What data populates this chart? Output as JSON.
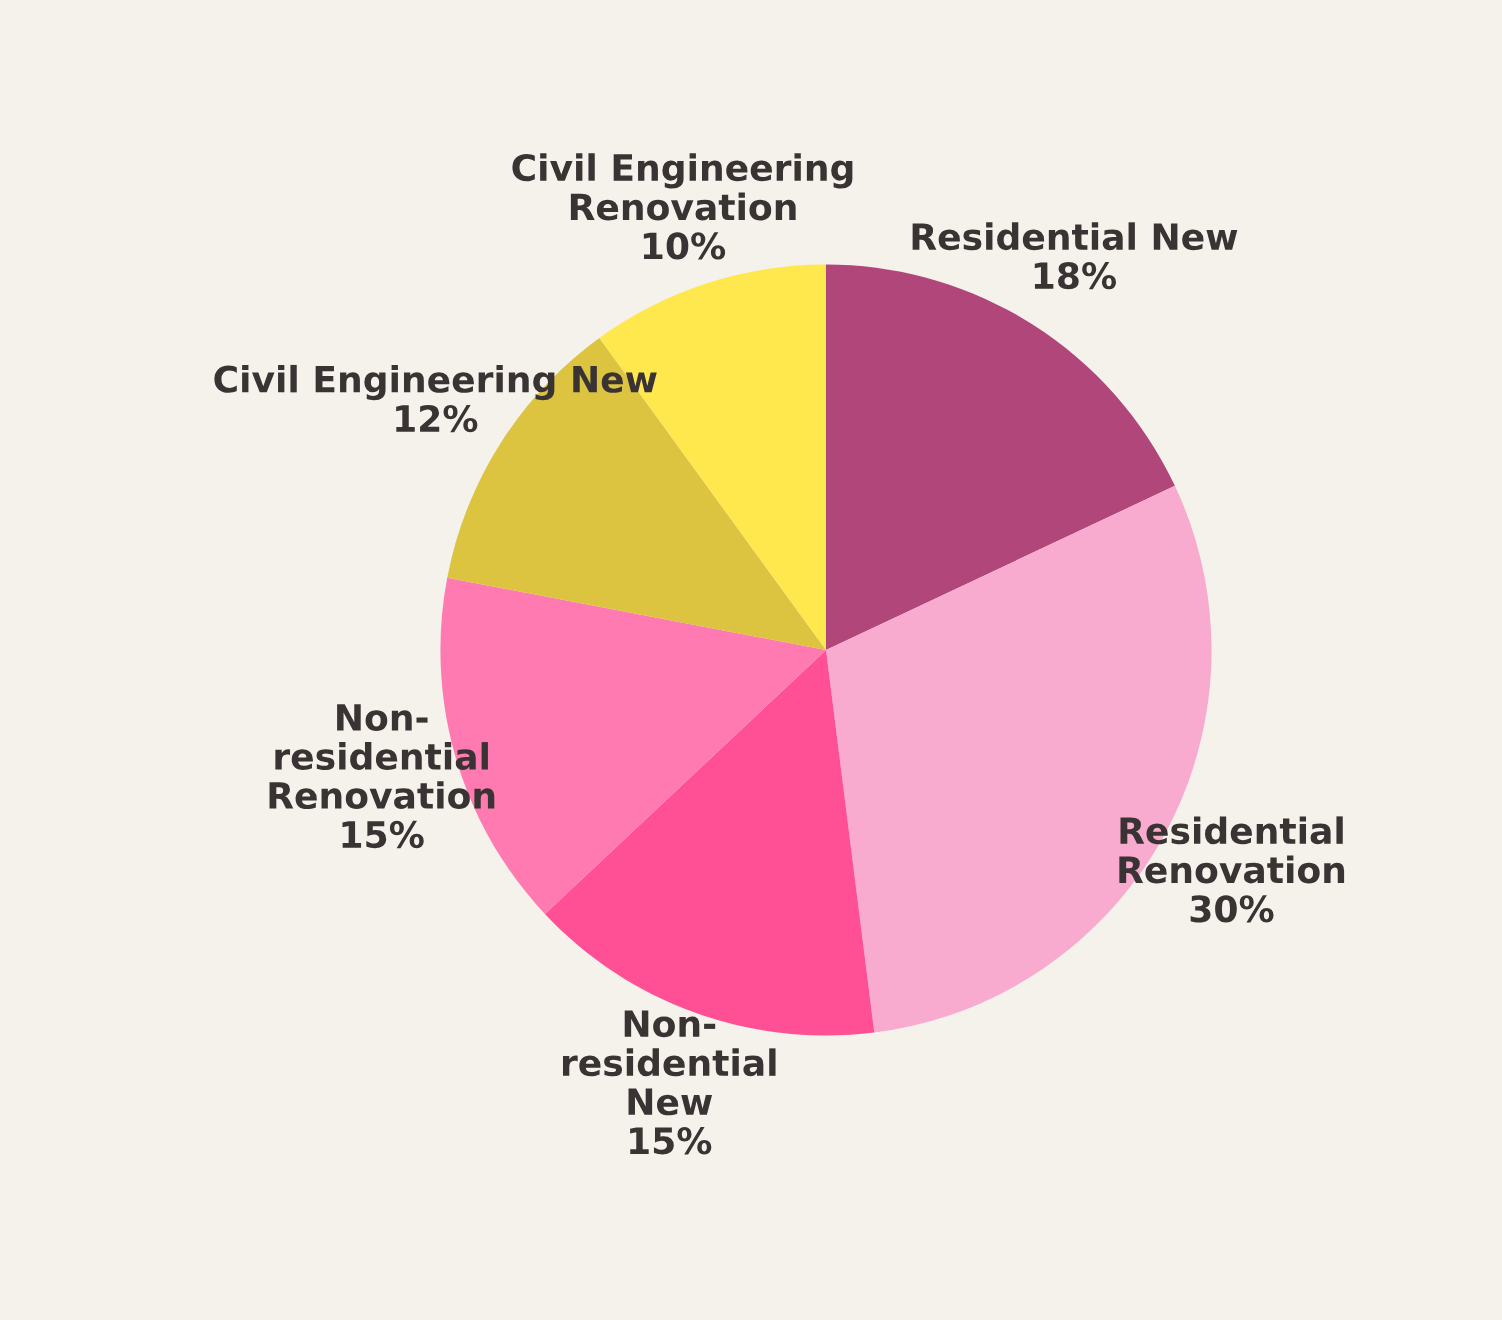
{
  "chart_data": {
    "type": "pie",
    "categories": [
      "Residential New",
      "Residential\nRenovation",
      "Non-\nresidential\nNew",
      "Non-\nresidential\nRenovation",
      "Civil Engineering New",
      "Civil Engineering\nRenovation"
    ],
    "values": [
      18,
      30,
      15,
      15,
      12,
      10
    ],
    "colors": [
      "#b1467a",
      "#f8aacf",
      "#ff5096",
      "#ff7ab0",
      "#dcc340",
      "#ffe74e"
    ],
    "value_labels": [
      "18%",
      "30%",
      "15%",
      "15%",
      "12%",
      "10%"
    ],
    "legend": false
  }
}
